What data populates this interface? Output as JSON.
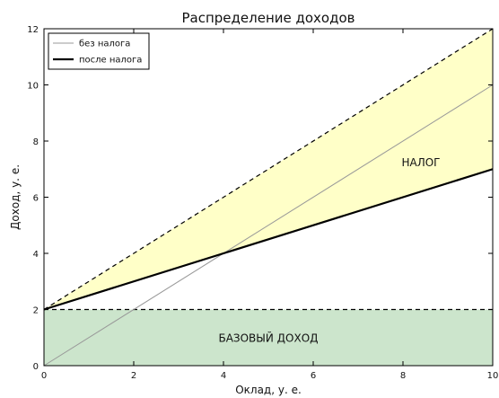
{
  "chart_data": {
    "type": "line",
    "title": "Распределение доходов",
    "xlabel": "Оклад, у. е.",
    "ylabel": "Доход, у. е.",
    "xlim": [
      0,
      10
    ],
    "ylim": [
      0,
      12
    ],
    "xticks": [
      0,
      2,
      4,
      6,
      8,
      10
    ],
    "yticks": [
      0,
      2,
      4,
      6,
      8,
      10,
      12
    ],
    "grid": false,
    "legend_position": "top-left",
    "series": [
      {
        "name": "без налога",
        "x": [
          0,
          10
        ],
        "y": [
          0,
          10
        ],
        "color": "#999999",
        "style": "solid"
      },
      {
        "name": "после налога",
        "x": [
          0,
          10
        ],
        "y": [
          2,
          7
        ],
        "color": "#000000",
        "style": "solid-bold"
      }
    ],
    "reference_lines": [
      {
        "x": [
          0,
          10
        ],
        "y": [
          2,
          12
        ],
        "color": "#000000",
        "style": "dashed"
      },
      {
        "x": [
          0,
          10
        ],
        "y": [
          2,
          2
        ],
        "color": "#000000",
        "style": "dashed"
      }
    ],
    "regions": [
      {
        "label": "НАЛОГ",
        "color": "#ffffc8",
        "upper": {
          "x": [
            0,
            10
          ],
          "y": [
            2,
            12
          ]
        },
        "lower": {
          "x": [
            0,
            10
          ],
          "y": [
            2,
            7
          ]
        },
        "label_at": [
          8.4,
          7.1
        ]
      },
      {
        "label": "БАЗОВЫЙ ДОХОД",
        "color": "#cce5cc",
        "upper": {
          "x": [
            0,
            10
          ],
          "y": [
            2,
            2
          ]
        },
        "lower": {
          "x": [
            0,
            10
          ],
          "y": [
            0,
            0
          ]
        },
        "label_at": [
          5,
          0.85
        ]
      }
    ]
  }
}
